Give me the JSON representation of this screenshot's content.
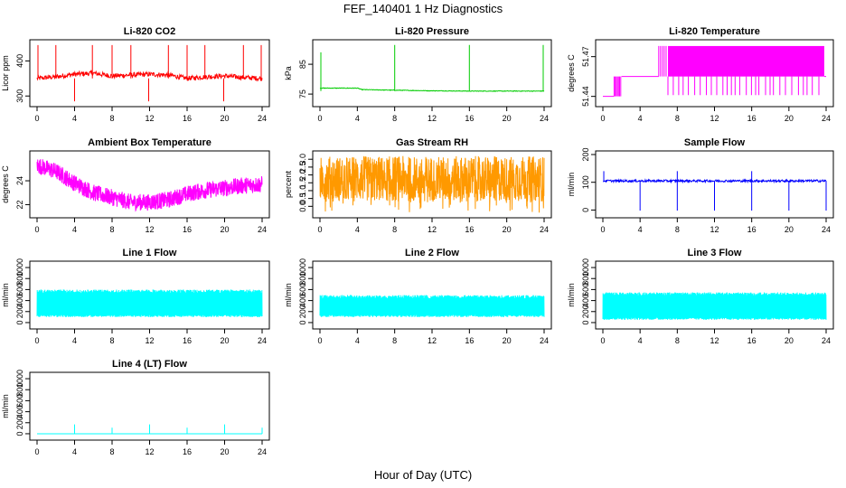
{
  "figure": {
    "title": "FEF_140401  1 Hz Diagnostics",
    "xlabel": "Hour of Day (UTC)"
  },
  "chart_data": [
    {
      "type": "line",
      "title": "Li-820 CO2",
      "ylabel": "Licor ppm",
      "color": "#ff0000",
      "xlim": [
        0,
        24
      ],
      "ylim": [
        280,
        450
      ],
      "xticks": [
        0,
        4,
        8,
        12,
        16,
        20,
        24
      ],
      "yticks": [
        300,
        400
      ],
      "ytick_labels": [
        "300",
        "400"
      ],
      "series": [
        {
          "x": [
            0,
            2,
            4,
            6,
            8,
            10,
            12,
            14,
            16,
            18,
            20,
            22,
            24
          ],
          "y": [
            350,
            355,
            362,
            365,
            357,
            360,
            362,
            360,
            350,
            355,
            357,
            353,
            350
          ]
        }
      ],
      "spikes_at": [
        0.1,
        2,
        4,
        5.9,
        8,
        10,
        11.9,
        14,
        16,
        17.9,
        19.9,
        22,
        23.9
      ]
    },
    {
      "type": "line",
      "title": "Li-820 Pressure",
      "ylabel": "kPa",
      "color": "#00cc00",
      "xlim": [
        0,
        24
      ],
      "ylim": [
        72,
        92
      ],
      "xticks": [
        0,
        4,
        8,
        12,
        16,
        20,
        24
      ],
      "yticks": [
        75,
        85
      ],
      "ytick_labels": [
        "75",
        "85"
      ],
      "series": [
        {
          "x": [
            0,
            4,
            4.5,
            8,
            12,
            16,
            20,
            24
          ],
          "y": [
            77,
            77,
            76.5,
            76.3,
            76.1,
            76.0,
            76.0,
            76.0
          ]
        }
      ],
      "spikes_at": [
        0.1,
        8,
        16,
        23.9
      ]
    },
    {
      "type": "line",
      "title": "Li-820 Temperature",
      "ylabel": "degrees C",
      "color": "#ff00ff",
      "xlim": [
        0,
        24
      ],
      "ylim": [
        51.435,
        51.48
      ],
      "xticks": [
        0,
        4,
        8,
        12,
        16,
        20,
        24
      ],
      "yticks": [
        51.44,
        51.47
      ],
      "ytick_labels": [
        "51.44",
        "51.47"
      ],
      "series": [
        {
          "x": [
            0,
            1.2,
            2,
            6,
            7,
            23.8,
            24
          ],
          "y": [
            51.44,
            51.44,
            51.455,
            51.455,
            51.478,
            51.478,
            51.455
          ]
        }
      ]
    },
    {
      "type": "line",
      "title": "Ambient Box Temperature",
      "ylabel": "degrees C",
      "color": "#ff00ff",
      "xlim": [
        0,
        24
      ],
      "ylim": [
        21.2,
        26.2
      ],
      "xticks": [
        0,
        4,
        8,
        12,
        16,
        20,
        24
      ],
      "yticks": [
        22,
        24
      ],
      "ytick_labels": [
        "22",
        "24"
      ],
      "series": [
        {
          "x": [
            0,
            2,
            4,
            6,
            8,
            10,
            12,
            14,
            16,
            18,
            20,
            22,
            24
          ],
          "y": [
            25.3,
            24.8,
            23.8,
            23.0,
            22.6,
            22.2,
            22.2,
            22.4,
            22.9,
            23.2,
            23.4,
            23.6,
            23.7
          ]
        }
      ]
    },
    {
      "type": "line",
      "title": "Gas Stream RH",
      "ylabel": "percent",
      "color": "#ff9900",
      "xlim": [
        0,
        24
      ],
      "ylim": [
        -0.5,
        3.3
      ],
      "xticks": [
        0,
        4,
        8,
        12,
        16,
        20,
        24
      ],
      "yticks": [
        0.0,
        0.5,
        1.0,
        1.5,
        2.0,
        2.5,
        3.0
      ],
      "ytick_labels": [
        "0.0",
        "0.5",
        "1.0",
        "1.5",
        "2.0",
        "2.5",
        "3.0"
      ],
      "series": [
        {
          "x": [
            0,
            24
          ],
          "y": [
            3.0,
            3.0
          ]
        }
      ]
    },
    {
      "type": "line",
      "title": "Sample Flow",
      "ylabel": "ml/min",
      "color": "#0000ff",
      "xlim": [
        0,
        24
      ],
      "ylim": [
        -15,
        200
      ],
      "xticks": [
        0,
        4,
        8,
        12,
        16,
        20,
        24
      ],
      "yticks": [
        0,
        100,
        200
      ],
      "ytick_labels": [
        "0",
        "100",
        "200"
      ],
      "series": [
        {
          "x": [
            0,
            24
          ],
          "y": [
            105,
            105
          ]
        }
      ],
      "dips_at": [
        4,
        8,
        12,
        16,
        20,
        24
      ],
      "peaks_at": [
        0.1,
        8,
        16
      ]
    },
    {
      "type": "line",
      "title": "Line 1 Flow",
      "ylabel": "ml/min",
      "color": "#00ffff",
      "xlim": [
        0,
        24
      ],
      "ylim": [
        -50,
        1050
      ],
      "xticks": [
        0,
        4,
        8,
        12,
        16,
        20,
        24
      ],
      "yticks": [
        0,
        200,
        400,
        600,
        800,
        1000
      ],
      "ytick_labels": [
        "0",
        "200",
        "400",
        "600",
        "800",
        "1000"
      ],
      "series": [
        {
          "x": [
            0,
            24
          ],
          "y": [
            100,
            600
          ]
        }
      ]
    },
    {
      "type": "line",
      "title": "Line 2 Flow",
      "ylabel": "ml/min",
      "color": "#00ffff",
      "xlim": [
        0,
        24
      ],
      "ylim": [
        -50,
        1050
      ],
      "xticks": [
        0,
        4,
        8,
        12,
        16,
        20,
        24
      ],
      "yticks": [
        0,
        200,
        400,
        600,
        800,
        1000
      ],
      "ytick_labels": [
        "0",
        "200",
        "400",
        "600",
        "800",
        "1000"
      ],
      "series": [
        {
          "x": [
            0,
            24
          ],
          "y": [
            100,
            500
          ]
        }
      ]
    },
    {
      "type": "line",
      "title": "Line 3 Flow",
      "ylabel": "ml/min",
      "color": "#00ffff",
      "xlim": [
        0,
        24
      ],
      "ylim": [
        -50,
        1050
      ],
      "xticks": [
        0,
        4,
        8,
        12,
        16,
        20,
        24
      ],
      "yticks": [
        0,
        200,
        400,
        600,
        800,
        1000
      ],
      "ytick_labels": [
        "0",
        "200",
        "400",
        "600",
        "800",
        "1000"
      ],
      "series": [
        {
          "x": [
            0,
            24
          ],
          "y": [
            50,
            550
          ]
        }
      ]
    },
    {
      "type": "line",
      "title": "Line 4 (LT) Flow",
      "ylabel": "ml/min",
      "color": "#00ffff",
      "xlim": [
        0,
        24
      ],
      "ylim": [
        -50,
        1050
      ],
      "xticks": [
        0,
        4,
        8,
        12,
        16,
        20,
        24
      ],
      "yticks": [
        0,
        200,
        400,
        600,
        800,
        1000
      ],
      "ytick_labels": [
        "0",
        "200",
        "400",
        "600",
        "800",
        "1000"
      ],
      "series": [
        {
          "x": [
            0,
            24
          ],
          "y": [
            0,
            0
          ]
        }
      ],
      "spikes_at": [
        4,
        8,
        12,
        16,
        20,
        24
      ]
    }
  ]
}
